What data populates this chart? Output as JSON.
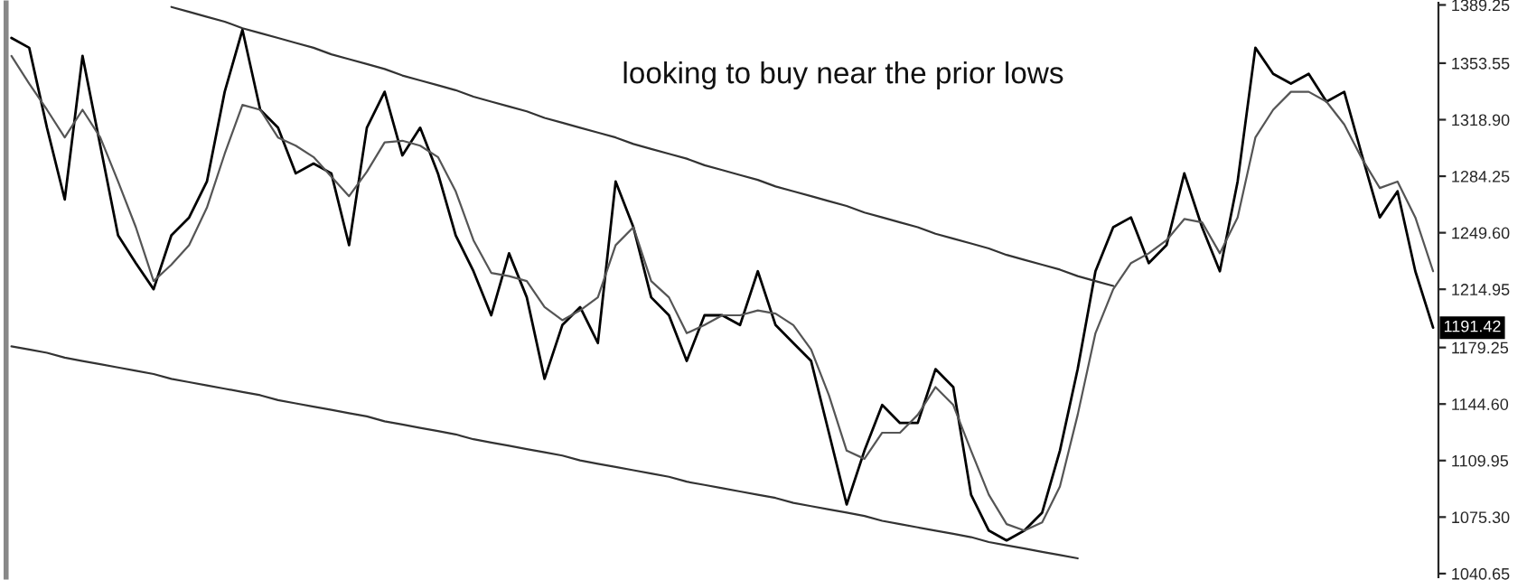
{
  "chart_data": {
    "type": "line",
    "annotations": [
      "looking to buy near the prior lows",
      {
        "text": "1191.42",
        "y": 1191.42
      }
    ],
    "categories": [
      null,
      null,
      null,
      null,
      null,
      null,
      null,
      null,
      null,
      null,
      null,
      null,
      null,
      null,
      null,
      null,
      null,
      null,
      null,
      null,
      null,
      null,
      null,
      null,
      null,
      null,
      null,
      null,
      null,
      null,
      null,
      null,
      null,
      null,
      null,
      null,
      null,
      null,
      null,
      null,
      null,
      null,
      null,
      null,
      null,
      null,
      null,
      null,
      null,
      null,
      null,
      null,
      null,
      null,
      null,
      null,
      null,
      null,
      null,
      null,
      null,
      null,
      null,
      null,
      null,
      null,
      null,
      null,
      null,
      null,
      null,
      null,
      null,
      null,
      null,
      null,
      null,
      null,
      null,
      null,
      null
    ],
    "ylim": [
      1038.5,
      1390.5
    ],
    "yticks": [
      {
        "value": 1040.65,
        "label": "1040.65"
      },
      {
        "value": 1075.3,
        "label": "1075.30"
      },
      {
        "value": 1109.95,
        "label": "1109.95"
      },
      {
        "value": 1144.6,
        "label": "1144.60"
      },
      {
        "value": 1179.25,
        "label": "1179.25"
      },
      {
        "value": 1214.95,
        "label": "1214.95"
      },
      {
        "value": 1249.6,
        "label": "1249.60"
      },
      {
        "value": 1284.25,
        "label": "1284.25"
      },
      {
        "value": 1318.9,
        "label": "1318.90"
      },
      {
        "value": 1353.55,
        "label": "1353.55"
      },
      {
        "value": 1389.25,
        "label": "1389.25"
      }
    ],
    "tick_labels": "y",
    "grid": false,
    "legend": false,
    "series": [
      {
        "color": "#000000",
        "values": [
          1369,
          1363,
          1314,
          1270,
          1358,
          1303,
          1248,
          1231,
          1215,
          1248,
          1259,
          1281,
          1336,
          1374,
          1325,
          1314,
          1286,
          1292,
          1286,
          1242,
          1314,
          1336,
          1297,
          1314,
          1286,
          1248,
          1226,
          1199,
          1237,
          1210,
          1160,
          1193,
          1204,
          1182,
          1281,
          1253,
          1210,
          1199,
          1171,
          1199,
          1199,
          1193,
          1226,
          1193,
          1182,
          1171,
          1127,
          1083,
          1116,
          1144,
          1133,
          1133,
          1166,
          1155,
          1089,
          1067,
          1061,
          1067,
          1078,
          1116,
          1166,
          1226,
          1253,
          1259,
          1231,
          1242,
          1286,
          1253,
          1226,
          1281,
          1363,
          1347,
          1341,
          1347,
          1330,
          1336,
          1297,
          1259,
          1275,
          1226,
          1191.42
        ]
      },
      {
        "color": "#555555",
        "values": [
          1358,
          1341,
          1325,
          1308,
          1325,
          1308,
          1281,
          1253,
          1220,
          1230,
          1242,
          1265,
          1298,
          1328,
          1325,
          1308,
          1303,
          1296,
          1284,
          1272,
          1287,
          1305,
          1306,
          1303,
          1296,
          1275,
          1245,
          1225,
          1223,
          1220,
          1204,
          1196,
          1202,
          1210,
          1242,
          1253,
          1220,
          1210,
          1188,
          1193,
          1199,
          1199,
          1202,
          1200,
          1193,
          1178,
          1150,
          1116,
          1111,
          1127,
          1127,
          1138,
          1155,
          1144,
          1116,
          1089,
          1071,
          1067,
          1072,
          1094,
          1138,
          1188,
          1215,
          1231,
          1237,
          1245,
          1258,
          1256,
          1237,
          1259,
          1308,
          1325,
          1336,
          1336,
          1330,
          1316,
          1295,
          1277,
          1281,
          1259,
          1226
        ]
      },
      {
        "color": "#333333",
        "values": [
          null,
          null,
          null,
          null,
          null,
          null,
          null,
          null,
          null,
          1388,
          1385,
          1382,
          1379,
          1375,
          1372,
          1369,
          1366,
          1363,
          1359,
          1356,
          1353,
          1350,
          1346,
          1343,
          1340,
          1337,
          1333,
          1330,
          1327,
          1324,
          1320,
          1317,
          1314,
          1311,
          1308,
          1304,
          1301,
          1298,
          1295,
          1291,
          1288,
          1285,
          1282,
          1278,
          1275,
          1272,
          1269,
          1266,
          1262,
          1259,
          1256,
          1253,
          1249,
          1246,
          1243,
          1240,
          1236,
          1233,
          1230,
          1227,
          1223,
          1220,
          1217,
          null,
          null,
          null,
          null,
          null,
          null,
          null,
          null,
          null,
          null,
          null,
          null,
          null,
          null,
          null,
          null,
          null,
          null
        ]
      },
      {
        "color": "#333333",
        "values": [
          1180,
          1178,
          1176,
          1173,
          1171,
          1169,
          1167,
          1165,
          1163,
          1160,
          1158,
          1156,
          1154,
          1152,
          1150,
          1147,
          1145,
          1143,
          1141,
          1139,
          1137,
          1134,
          1132,
          1130,
          1128,
          1126,
          1123,
          1121,
          1119,
          1117,
          1115,
          1113,
          1110,
          1108,
          1106,
          1104,
          1102,
          1100,
          1097,
          1095,
          1093,
          1091,
          1089,
          1087,
          1084,
          1082,
          1080,
          1078,
          1076,
          1073,
          1071,
          1069,
          1067,
          1065,
          1063,
          1060,
          1058,
          1056,
          1054,
          1052,
          1050,
          null,
          null,
          null,
          null,
          null,
          null,
          null,
          null,
          null,
          null,
          null,
          null,
          null,
          null,
          null,
          null,
          null,
          null,
          null,
          null
        ]
      }
    ]
  }
}
